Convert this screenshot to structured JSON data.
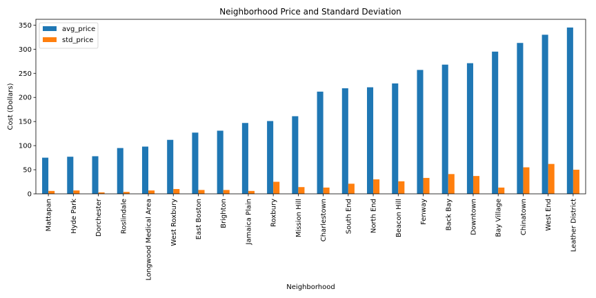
{
  "chart_data": {
    "type": "bar",
    "title": "Neighborhood Price and Standard Deviation",
    "xlabel": "Neighborhood",
    "ylabel": "Cost (Dollars)",
    "ylim": [
      0,
      362
    ],
    "yticks": [
      0,
      50,
      100,
      150,
      200,
      250,
      300,
      350
    ],
    "grid": false,
    "legend_position": "top-left",
    "categories": [
      "Mattapan",
      "Hyde Park",
      "Dorchester",
      "Roslindale",
      "Longwood Medical Area",
      "West Roxbury",
      "East Boston",
      "Brighton",
      "Jamaica Plain",
      "Roxbury",
      "Mission Hill",
      "Charlestown",
      "South End",
      "North End",
      "Beacon Hill",
      "Fenway",
      "Back Bay",
      "Downtown",
      "Bay Village",
      "Chinatown",
      "West End",
      "Leather District"
    ],
    "series": [
      {
        "name": "avg_price",
        "color": "#1f77b4",
        "values": [
          75,
          77,
          78,
          95,
          98,
          112,
          127,
          131,
          147,
          151,
          161,
          212,
          219,
          221,
          229,
          257,
          268,
          271,
          295,
          313,
          330,
          345
        ]
      },
      {
        "name": "std_price",
        "color": "#ff7f0e",
        "values": [
          6,
          7,
          3,
          4,
          7,
          10,
          8,
          8,
          6,
          25,
          14,
          13,
          21,
          30,
          26,
          33,
          41,
          37,
          13,
          55,
          62,
          50
        ]
      }
    ]
  }
}
